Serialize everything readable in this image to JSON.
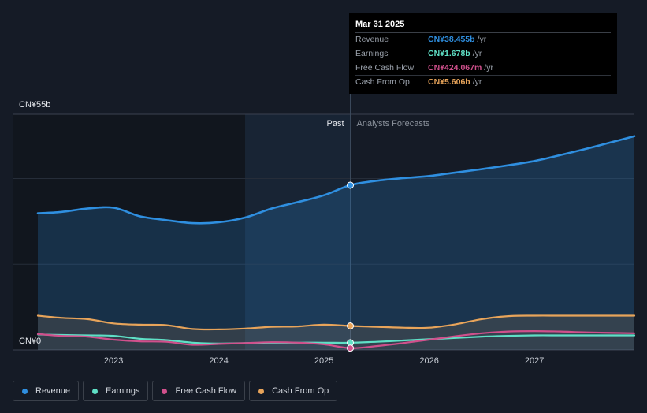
{
  "chart_data": {
    "type": "line",
    "x_range": [
      2022.28,
      2027.95
    ],
    "y_range": [
      0,
      55
    ],
    "y_axis_labels": {
      "top": "CN¥55b",
      "bottom": "CN¥0"
    },
    "x_ticks": [
      {
        "label": "2023",
        "value": 2023.0
      },
      {
        "label": "2024",
        "value": 2024.0
      },
      {
        "label": "2025",
        "value": 2025.0
      },
      {
        "label": "2026",
        "value": 2026.0
      },
      {
        "label": "2027",
        "value": 2027.0
      }
    ],
    "gridlines": [
      0,
      20,
      40,
      55
    ],
    "past_label": "Past",
    "forecast_label": "Analysts Forecasts",
    "highlight_x": 2025.25,
    "past_shade_start": 2024.25,
    "series": [
      {
        "name": "Revenue",
        "color": "#2f8fe0",
        "fill": true,
        "x": [
          2022.28,
          2022.5,
          2022.75,
          2023.0,
          2023.25,
          2023.5,
          2023.75,
          2024.0,
          2024.25,
          2024.5,
          2024.75,
          2025.0,
          2025.25,
          2025.5,
          2025.75,
          2026.0,
          2026.25,
          2026.5,
          2026.75,
          2027.0,
          2027.25,
          2027.5,
          2027.75,
          2027.95
        ],
        "values": [
          31.9,
          32.2,
          33.0,
          33.2,
          31.2,
          30.3,
          29.6,
          29.8,
          30.9,
          33.0,
          34.5,
          36.1,
          38.455,
          39.5,
          40.1,
          40.6,
          41.4,
          42.2,
          43.1,
          44.1,
          45.5,
          47.0,
          48.6,
          49.9
        ]
      },
      {
        "name": "Earnings",
        "color": "#5fe0c6",
        "fill": false,
        "x": [
          2022.28,
          2022.5,
          2022.75,
          2023.0,
          2023.25,
          2023.5,
          2023.75,
          2024.0,
          2024.25,
          2024.5,
          2024.75,
          2025.0,
          2025.25,
          2025.5,
          2025.75,
          2026.0,
          2026.25,
          2026.5,
          2026.75,
          2027.0,
          2027.25,
          2027.5,
          2027.95
        ],
        "values": [
          3.6,
          3.5,
          3.4,
          3.3,
          2.6,
          2.3,
          1.7,
          1.5,
          1.6,
          1.7,
          1.7,
          1.7,
          1.678,
          1.9,
          2.2,
          2.5,
          2.8,
          3.1,
          3.3,
          3.4,
          3.4,
          3.4,
          3.4
        ]
      },
      {
        "name": "Free Cash Flow",
        "color": "#d0508c",
        "fill": false,
        "x": [
          2022.28,
          2022.5,
          2022.75,
          2023.0,
          2023.25,
          2023.5,
          2023.75,
          2024.0,
          2024.25,
          2024.5,
          2024.75,
          2025.0,
          2025.25,
          2025.5,
          2025.75,
          2026.0,
          2026.25,
          2026.5,
          2026.75,
          2027.0,
          2027.25,
          2027.5,
          2027.95
        ],
        "values": [
          3.7,
          3.3,
          3.1,
          2.4,
          2.0,
          1.9,
          1.2,
          1.4,
          1.6,
          1.8,
          1.7,
          1.3,
          0.424,
          0.9,
          1.6,
          2.4,
          3.2,
          3.9,
          4.3,
          4.4,
          4.3,
          4.1,
          3.9
        ]
      },
      {
        "name": "Cash From Op",
        "color": "#e8a45a",
        "fill": true,
        "x": [
          2022.28,
          2022.5,
          2022.75,
          2023.0,
          2023.25,
          2023.5,
          2023.75,
          2024.0,
          2024.25,
          2024.5,
          2024.75,
          2025.0,
          2025.25,
          2025.5,
          2025.75,
          2026.0,
          2026.25,
          2026.5,
          2026.75,
          2027.0,
          2027.25,
          2027.5,
          2027.95
        ],
        "values": [
          8.0,
          7.5,
          7.2,
          6.2,
          5.9,
          5.8,
          4.9,
          4.8,
          5.0,
          5.4,
          5.5,
          5.9,
          5.606,
          5.4,
          5.2,
          5.2,
          6.0,
          7.2,
          7.9,
          8.0,
          8.0,
          8.0,
          8.0
        ]
      }
    ]
  },
  "tooltip": {
    "date": "Mar 31 2025",
    "rows": [
      {
        "label": "Revenue",
        "value": "CN¥38.455b",
        "unit": "/yr",
        "color": "#2f8fe0"
      },
      {
        "label": "Earnings",
        "value": "CN¥1.678b",
        "unit": "/yr",
        "color": "#5fe0c6"
      },
      {
        "label": "Free Cash Flow",
        "value": "CN¥424.067m",
        "unit": "/yr",
        "color": "#d0508c"
      },
      {
        "label": "Cash From Op",
        "value": "CN¥5.606b",
        "unit": "/yr",
        "color": "#e8a45a"
      }
    ]
  },
  "legend": [
    {
      "label": "Revenue",
      "color": "#2f8fe0"
    },
    {
      "label": "Earnings",
      "color": "#5fe0c6"
    },
    {
      "label": "Free Cash Flow",
      "color": "#d0508c"
    },
    {
      "label": "Cash From Op",
      "color": "#e8a45a"
    }
  ]
}
